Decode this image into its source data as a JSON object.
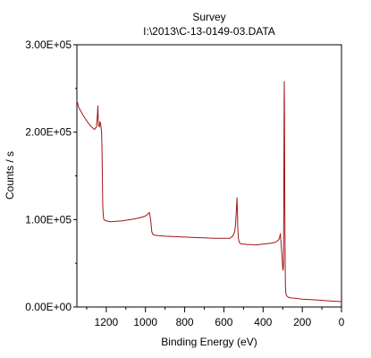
{
  "chart_data": {
    "type": "line",
    "title": "Survey",
    "subtitle": "I:\\2013\\C-13-0149-03.DATA",
    "xlabel": "Binding Energy (eV)",
    "ylabel": "Counts / s",
    "xlim": [
      1350,
      0
    ],
    "ylim": [
      0,
      300000
    ],
    "x_ticks": [
      {
        "v": 1200,
        "label": "1200"
      },
      {
        "v": 1000,
        "label": "1000"
      },
      {
        "v": 800,
        "label": "800"
      },
      {
        "v": 600,
        "label": "600"
      },
      {
        "v": 400,
        "label": "400"
      },
      {
        "v": 200,
        "label": "200"
      },
      {
        "v": 0,
        "label": "0"
      }
    ],
    "y_ticks": [
      {
        "v": 0,
        "label": "0.00E+00"
      },
      {
        "v": 100000,
        "label": "1.00E+05"
      },
      {
        "v": 200000,
        "label": "2.00E+05"
      },
      {
        "v": 300000,
        "label": "3.00E+05"
      }
    ],
    "grid": false,
    "series": [
      {
        "color": "#a31515",
        "x": [
          1350,
          1340,
          1320,
          1300,
          1280,
          1260,
          1250,
          1245,
          1243,
          1240,
          1235,
          1232,
          1228,
          1224,
          1222,
          1220,
          1218,
          1216,
          1214,
          1212,
          1208,
          1205,
          1200,
          1180,
          1150,
          1120,
          1090,
          1060,
          1030,
          1000,
          990,
          980,
          975,
          972,
          968,
          962,
          950,
          930,
          900,
          850,
          800,
          750,
          700,
          650,
          600,
          570,
          555,
          545,
          540,
          536,
          533,
          531,
          529,
          527,
          524,
          520,
          515,
          505,
          495,
          480,
          460,
          440,
          420,
          400,
          380,
          360,
          340,
          330,
          320,
          315,
          312,
          310,
          308,
          306,
          304,
          302,
          300,
          298,
          296,
          295,
          294,
          293,
          292,
          291,
          290,
          289,
          288,
          287,
          286,
          285,
          284,
          283,
          282,
          280,
          278,
          276,
          273,
          270,
          265,
          260,
          250,
          240,
          230,
          220,
          200,
          180,
          150,
          120,
          100,
          80,
          60,
          40,
          20,
          10,
          5,
          0
        ],
        "y": [
          236000,
          228000,
          220000,
          213000,
          207000,
          203000,
          206000,
          220000,
          230000,
          208000,
          206000,
          212000,
          209000,
          200000,
          180000,
          150000,
          118000,
          106000,
          102000,
          100000,
          99000,
          99000,
          98500,
          97500,
          98000,
          98500,
          99500,
          100500,
          102000,
          104000,
          106000,
          108000,
          102000,
          96000,
          86000,
          83000,
          82000,
          81500,
          81000,
          80500,
          80000,
          79500,
          79000,
          78500,
          78500,
          78500,
          81000,
          86000,
          96000,
          113000,
          125000,
          108000,
          90000,
          80000,
          76000,
          73500,
          72500,
          72000,
          72000,
          71500,
          71500,
          71000,
          71500,
          72000,
          72500,
          73000,
          74000,
          75000,
          77000,
          80000,
          84000,
          78000,
          72000,
          66000,
          60000,
          52000,
          45000,
          42000,
          48000,
          80000,
          150000,
          220000,
          258000,
          235000,
          170000,
          110000,
          70000,
          40000,
          25000,
          20000,
          18000,
          15000,
          14000,
          13000,
          12500,
          12000,
          11500,
          11000,
          10800,
          10500,
          10200,
          10000,
          9800,
          9500,
          9000,
          8700,
          8300,
          7900,
          7600,
          7300,
          7000,
          6700,
          6400,
          6200,
          6100,
          6000
        ]
      }
    ]
  }
}
